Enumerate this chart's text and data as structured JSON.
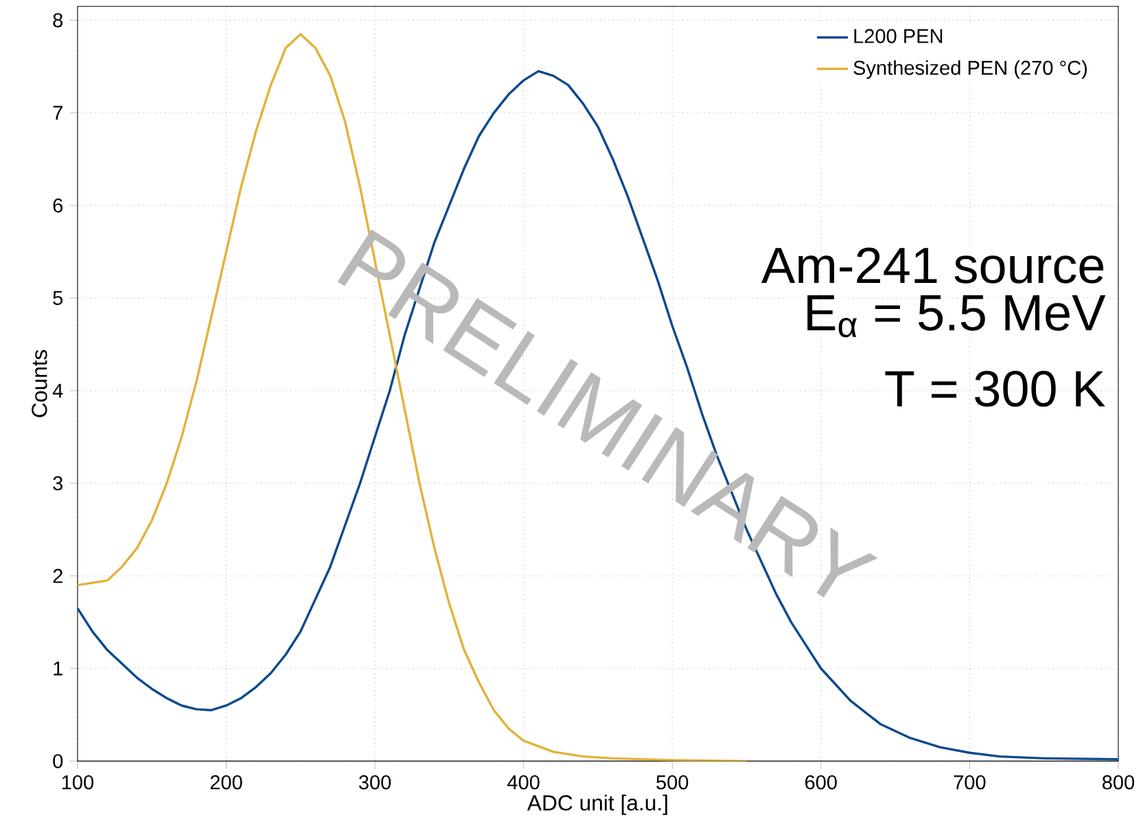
{
  "chart_data": {
    "type": "line",
    "xlabel": "ADC unit [a.u.]",
    "ylabel": "Counts",
    "x": [
      100,
      110,
      120,
      130,
      140,
      150,
      160,
      170,
      180,
      190,
      200,
      210,
      220,
      230,
      240,
      250,
      260,
      270,
      280,
      290,
      300,
      310,
      320,
      330,
      340,
      350,
      360,
      370,
      380,
      390,
      400,
      410,
      420,
      430,
      440,
      450,
      460,
      470,
      480,
      490,
      500,
      510,
      520,
      530,
      540,
      550,
      560,
      570,
      580,
      590,
      600,
      620,
      640,
      660,
      680,
      700,
      720,
      750,
      800
    ],
    "series": [
      {
        "name": "L200 PEN",
        "color": "#0b4a8c",
        "values": [
          1.65,
          1.4,
          1.2,
          1.05,
          0.9,
          0.78,
          0.68,
          0.6,
          0.56,
          0.55,
          0.6,
          0.68,
          0.8,
          0.95,
          1.15,
          1.4,
          1.75,
          2.1,
          2.55,
          3.0,
          3.5,
          4.0,
          4.6,
          5.1,
          5.6,
          6.0,
          6.4,
          6.75,
          7.0,
          7.2,
          7.35,
          7.45,
          7.4,
          7.3,
          7.1,
          6.85,
          6.5,
          6.1,
          5.65,
          5.2,
          4.7,
          4.25,
          3.75,
          3.3,
          2.9,
          2.5,
          2.15,
          1.8,
          1.5,
          1.25,
          1.0,
          0.65,
          0.4,
          0.25,
          0.15,
          0.09,
          0.05,
          0.03,
          0.02
        ]
      },
      {
        "name": "Synthesized PEN (270 °C)",
        "color": "#e3b23c",
        "x": [
          100,
          120,
          130,
          140,
          150,
          160,
          170,
          180,
          190,
          200,
          210,
          220,
          230,
          240,
          250,
          260,
          270,
          280,
          290,
          300,
          310,
          320,
          330,
          340,
          350,
          360,
          370,
          380,
          390,
          400,
          420,
          440,
          460,
          500,
          550
        ],
        "values": [
          1.9,
          1.95,
          2.1,
          2.3,
          2.6,
          3.0,
          3.5,
          4.1,
          4.8,
          5.5,
          6.2,
          6.8,
          7.3,
          7.7,
          7.85,
          7.7,
          7.4,
          6.9,
          6.2,
          5.4,
          4.6,
          3.8,
          3.0,
          2.3,
          1.7,
          1.2,
          0.85,
          0.55,
          0.35,
          0.22,
          0.1,
          0.05,
          0.03,
          0.01,
          0.0
        ]
      }
    ],
    "xlim": [
      100,
      800
    ],
    "ylim": [
      0,
      8.15
    ],
    "xticks": [
      100,
      200,
      300,
      400,
      500,
      600,
      700,
      800
    ],
    "yticks": [
      0,
      1,
      2,
      3,
      4,
      5,
      6,
      7,
      8
    ],
    "grid": true,
    "legend": "top right",
    "line_style": "solid",
    "annotations": [
      "Am-241 source",
      "E$_{α}$ = 5.5 MeV",
      "T = 300 K",
      "PRELIMINARY"
    ]
  }
}
